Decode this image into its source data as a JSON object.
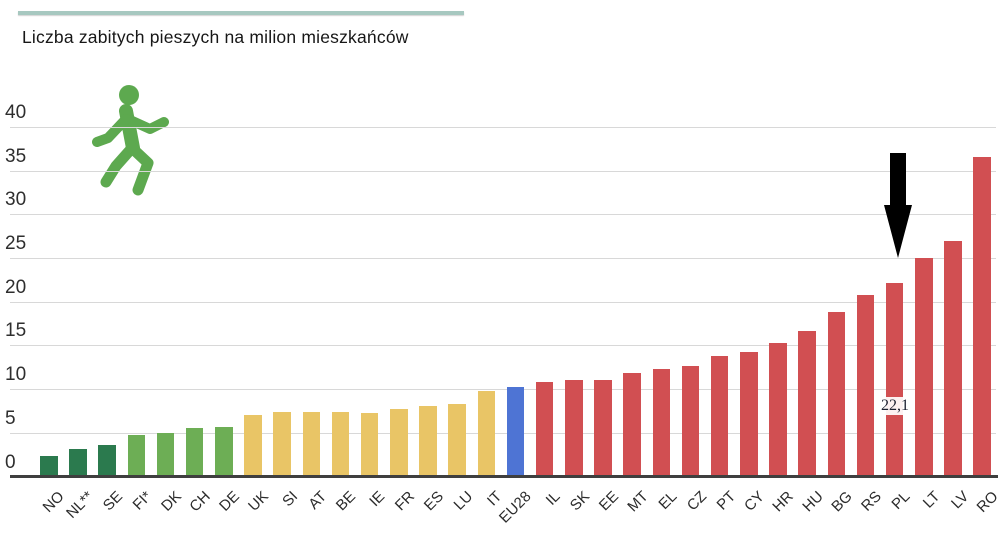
{
  "header": {
    "title": "Liczba zabitych pieszych na milion mieszkańców"
  },
  "annotation": {
    "pl_value_label": "22,1",
    "arrow_target": "PL"
  },
  "icon": {
    "name": "pedestrian-icon",
    "color": "#5da94f"
  },
  "palette": {
    "dark_green": "#2b7a4e",
    "green": "#6dae55",
    "yellow": "#e9c566",
    "blue": "#4e74d4",
    "red": "#d14f52",
    "gridline": "#d8d8d8",
    "axis": "#3f3f3f",
    "arrow": "#000000",
    "accent_line": "#a7c8c0"
  },
  "chart_data": {
    "type": "bar",
    "title": "Liczba zabitych pieszych na milion mieszkańców",
    "categories": [
      "NO",
      "NL**",
      "SE",
      "FI*",
      "DK",
      "CH",
      "DE",
      "UK",
      "SI",
      "AT",
      "BE",
      "IE",
      "FR",
      "ES",
      "LU",
      "IT",
      "EU28",
      "IL",
      "SK",
      "EE",
      "MT",
      "EL",
      "CZ",
      "PT",
      "CY",
      "HR",
      "HU",
      "BG",
      "RS",
      "PL",
      "LT",
      "LV",
      "RO"
    ],
    "values": [
      2.4,
      3.1,
      3.6,
      4.7,
      5.0,
      5.5,
      5.7,
      7.0,
      7.4,
      7.4,
      7.4,
      7.3,
      7.7,
      8.1,
      8.3,
      9.8,
      10.3,
      10.8,
      11.1,
      11.1,
      11.9,
      12.3,
      12.6,
      13.8,
      14.3,
      15.3,
      16.7,
      18.8,
      20.8,
      22.1,
      25.0,
      26.9,
      36.6
    ],
    "colors": [
      "#2b7a4e",
      "#2b7a4e",
      "#2b7a4e",
      "#6dae55",
      "#6dae55",
      "#6dae55",
      "#6dae55",
      "#e9c566",
      "#e9c566",
      "#e9c566",
      "#e9c566",
      "#e9c566",
      "#e9c566",
      "#e9c566",
      "#e9c566",
      "#e9c566",
      "#4e74d4",
      "#d14f52",
      "#d14f52",
      "#d14f52",
      "#d14f52",
      "#d14f52",
      "#d14f52",
      "#d14f52",
      "#d14f52",
      "#d14f52",
      "#d14f52",
      "#d14f52",
      "#d14f52",
      "#d14f52",
      "#d14f52",
      "#d14f52",
      "#d14f52"
    ],
    "xlabel": "",
    "ylabel": "",
    "ylim": [
      0,
      40
    ],
    "yticks": [
      0,
      5,
      10,
      15,
      20,
      25,
      30,
      35,
      40
    ],
    "grid": true,
    "legend": false,
    "annotated_value": {
      "category": "PL",
      "label": "22,1"
    }
  }
}
